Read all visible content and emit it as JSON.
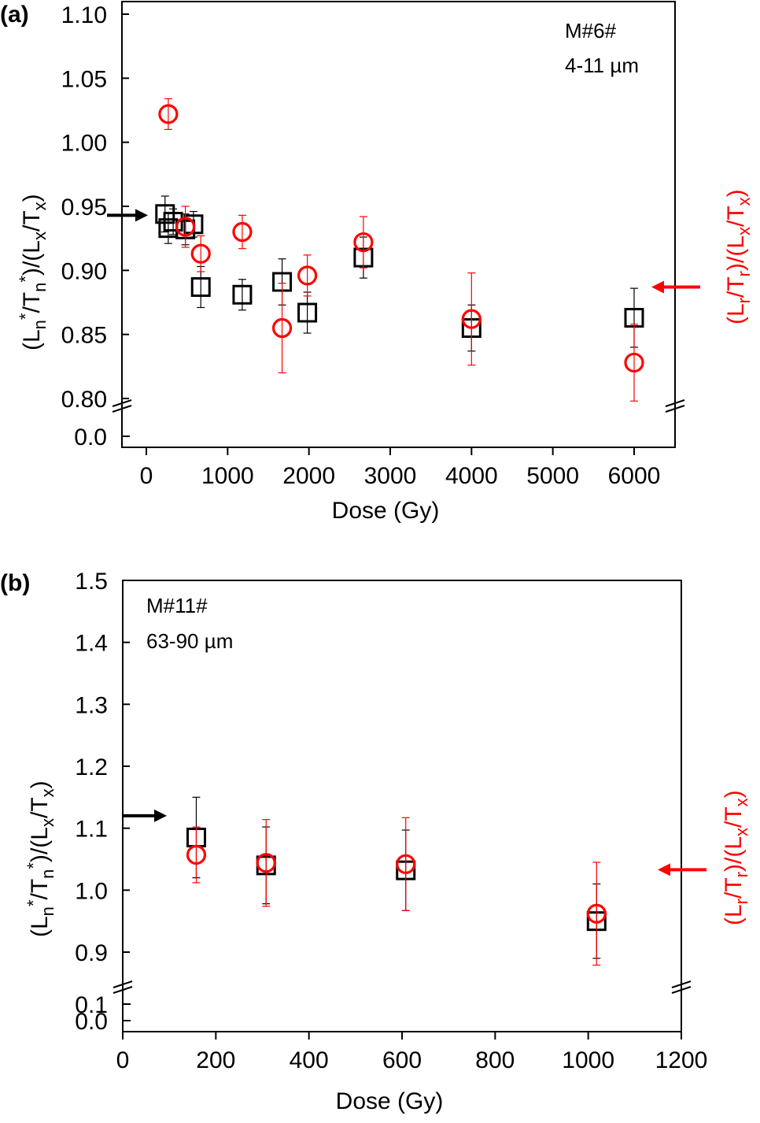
{
  "chart_data": [
    {
      "type": "scatter",
      "panel_label": "(a)",
      "sample": "M#6#",
      "grain_size": "4-11 µm",
      "xlabel": "Dose (Gy)",
      "ylabel_left": "(Ln*/Tn*)/(Lx/Tx)",
      "ylabel_right": "(Lr/Tr)/(Lx/Tx)",
      "xlim": [
        -150,
        6500
      ],
      "xticks": [
        0,
        1000,
        2000,
        3000,
        4000,
        5000,
        6000
      ],
      "xtick_labels": [
        "0",
        "1000",
        "2000",
        "3000",
        "4000",
        "5000",
        "6000"
      ],
      "ylim": [
        0.8,
        1.1
      ],
      "yticks": [
        0.8,
        0.85,
        0.9,
        0.95,
        1.0,
        1.05,
        1.1
      ],
      "ytick_labels": [
        "0.80",
        "0.85",
        "0.90",
        "0.95",
        "1.00",
        "1.05",
        "1.10"
      ],
      "ybreak_label": "0.0",
      "left_arrow_value": 0.943,
      "right_arrow_value": 0.887,
      "series": [
        {
          "marker": "square",
          "color": "#000000",
          "points": [
            {
              "x": 230,
              "y": 0.944,
              "err": 0.014
            },
            {
              "x": 270,
              "y": 0.933,
              "err": 0.012
            },
            {
              "x": 330,
              "y": 0.938,
              "err": 0.01
            },
            {
              "x": 480,
              "y": 0.932,
              "err": 0.012
            },
            {
              "x": 580,
              "y": 0.936,
              "err": 0.01
            },
            {
              "x": 670,
              "y": 0.887,
              "err": 0.016
            },
            {
              "x": 1180,
              "y": 0.881,
              "err": 0.012
            },
            {
              "x": 1670,
              "y": 0.891,
              "err": 0.018
            },
            {
              "x": 1980,
              "y": 0.867,
              "err": 0.016
            },
            {
              "x": 2670,
              "y": 0.91,
              "err": 0.016
            },
            {
              "x": 4000,
              "y": 0.855,
              "err": 0.018
            },
            {
              "x": 6000,
              "y": 0.863,
              "err": 0.023
            }
          ]
        },
        {
          "marker": "circle",
          "color": "#ff0000",
          "points": [
            {
              "x": 270,
              "y": 1.022,
              "err": 0.012
            },
            {
              "x": 480,
              "y": 0.934,
              "err": 0.016
            },
            {
              "x": 670,
              "y": 0.913,
              "err": 0.014
            },
            {
              "x": 1180,
              "y": 0.93,
              "err": 0.013
            },
            {
              "x": 1670,
              "y": 0.855,
              "err": 0.035
            },
            {
              "x": 1980,
              "y": 0.896,
              "err": 0.016
            },
            {
              "x": 2670,
              "y": 0.922,
              "err": 0.02
            },
            {
              "x": 4000,
              "y": 0.862,
              "err": 0.036
            },
            {
              "x": 6000,
              "y": 0.828,
              "err": 0.03
            }
          ]
        }
      ]
    },
    {
      "type": "scatter",
      "panel_label": "(b)",
      "sample": "M#11#",
      "grain_size": "63-90 µm",
      "xlabel": "Dose (Gy)",
      "ylabel_left": "(Ln*/Tn*)/(Lx/Tx)",
      "ylabel_right": "(Lr/Tr)/(Lx/Tx)",
      "xlim": [
        0,
        1200
      ],
      "xticks": [
        0,
        200,
        400,
        600,
        800,
        1000,
        1200
      ],
      "xtick_labels": [
        "0",
        "200",
        "400",
        "600",
        "800",
        "1000",
        "1200"
      ],
      "ylim": [
        0.9,
        1.5
      ],
      "yticks": [
        0.9,
        1.0,
        1.1,
        1.2,
        1.3,
        1.4,
        1.5
      ],
      "ytick_labels": [
        "0.9",
        "1.0",
        "1.1",
        "1.2",
        "1.3",
        "1.4",
        "1.5"
      ],
      "ybreak_labels": [
        "0.1",
        "0.0"
      ],
      "left_arrow_value": 1.12,
      "right_arrow_value": 1.033,
      "series": [
        {
          "marker": "square",
          "color": "#000000",
          "points": [
            {
              "x": 158,
              "y": 1.085,
              "err": 0.065
            },
            {
              "x": 308,
              "y": 1.04,
              "err": 0.062
            },
            {
              "x": 608,
              "y": 1.032,
              "err": 0.065
            },
            {
              "x": 1018,
              "y": 0.95,
              "err": 0.06
            }
          ]
        },
        {
          "marker": "circle",
          "color": "#ff0000",
          "points": [
            {
              "x": 158,
              "y": 1.057,
              "err": 0.045
            },
            {
              "x": 308,
              "y": 1.044,
              "err": 0.07
            },
            {
              "x": 608,
              "y": 1.042,
              "err": 0.075
            },
            {
              "x": 1018,
              "y": 0.962,
              "err": 0.083
            }
          ]
        }
      ]
    }
  ]
}
